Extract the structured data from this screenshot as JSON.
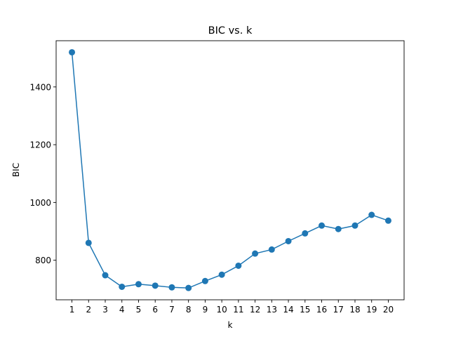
{
  "chart_data": {
    "type": "line",
    "title": "BIC vs. k",
    "xlabel": "k",
    "ylabel": "BIC",
    "x": [
      1,
      2,
      3,
      4,
      5,
      6,
      7,
      8,
      9,
      10,
      11,
      12,
      13,
      14,
      15,
      16,
      17,
      18,
      19,
      20
    ],
    "series": [
      {
        "values": [
          1520,
          860,
          748,
          708,
          717,
          712,
          706,
          704,
          728,
          750,
          781,
          823,
          837,
          866,
          893,
          920,
          908,
          920,
          957,
          937
        ]
      }
    ],
    "xticks": [
      1,
      2,
      3,
      4,
      5,
      6,
      7,
      8,
      9,
      10,
      11,
      12,
      13,
      14,
      15,
      16,
      17,
      18,
      19,
      20
    ],
    "yticks": [
      800,
      1000,
      1200,
      1400
    ],
    "xlim": [
      0.05,
      20.95
    ],
    "ylim": [
      663,
      1560
    ],
    "grid": false,
    "colors": {
      "line": "#1f77b4",
      "marker": "#1f77b4"
    }
  }
}
